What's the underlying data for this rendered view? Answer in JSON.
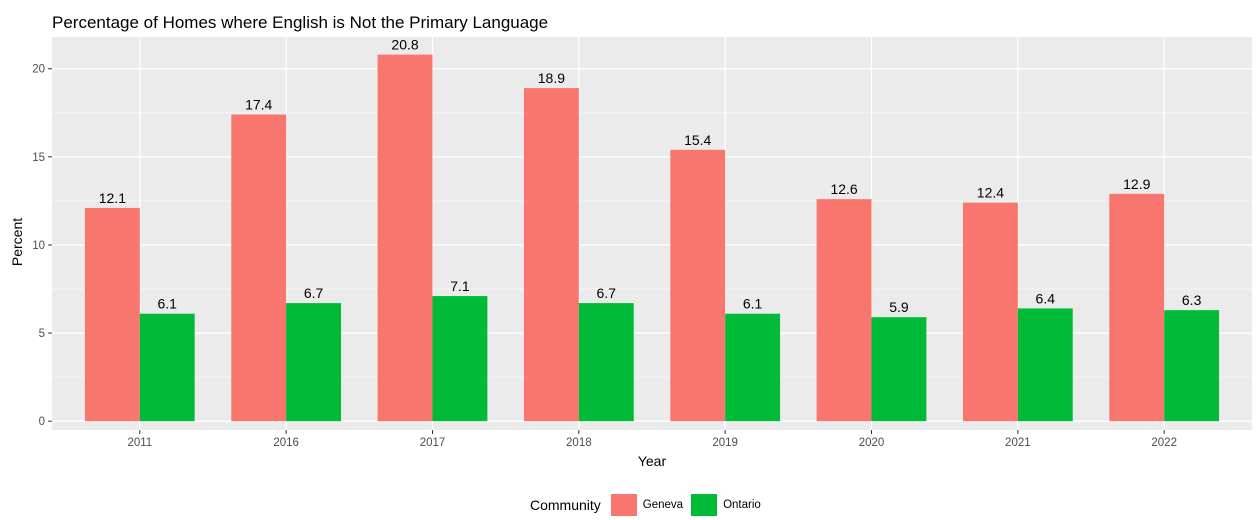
{
  "chart_data": {
    "type": "bar",
    "title": "Percentage of Homes where English is Not the Primary Language",
    "xlabel": "Year",
    "ylabel": "Percent",
    "categories": [
      "2011",
      "2016",
      "2017",
      "2018",
      "2019",
      "2020",
      "2021",
      "2022"
    ],
    "series": [
      {
        "name": "Geneva",
        "color": "#F8766D",
        "values": [
          12.1,
          17.4,
          20.8,
          18.9,
          15.4,
          12.6,
          12.4,
          12.9
        ]
      },
      {
        "name": "Ontario",
        "color": "#00BA38",
        "values": [
          6.1,
          6.7,
          7.1,
          6.7,
          6.1,
          5.9,
          6.4,
          6.3
        ]
      }
    ],
    "ylim": [
      -0.5,
      21.8
    ],
    "yticks": [
      0,
      5,
      10,
      15,
      20
    ],
    "grid": true,
    "panel_background": "#EBEBEB",
    "legend": {
      "title": "Community",
      "position": "bottom"
    }
  }
}
